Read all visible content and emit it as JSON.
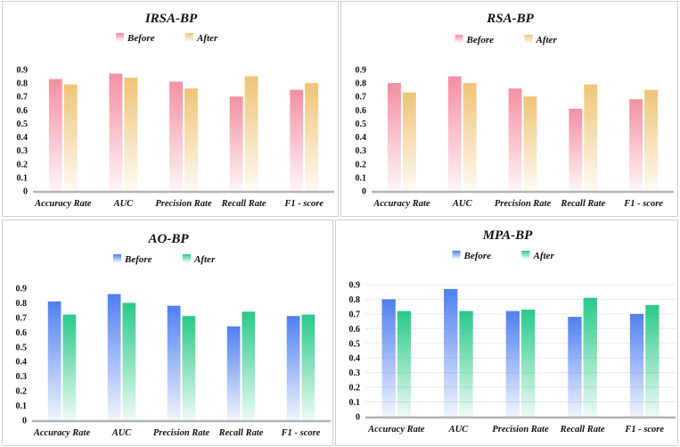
{
  "chart_data": [
    {
      "type": "bar",
      "title": "IRSA-BP",
      "categories": [
        "Accuracy Rate",
        "AUC",
        "Precision Rate",
        "Recall Rate",
        "F1 - score"
      ],
      "series": [
        {
          "name": "Before",
          "values": [
            0.83,
            0.87,
            0.81,
            0.7,
            0.75
          ]
        },
        {
          "name": "After",
          "values": [
            0.79,
            0.84,
            0.76,
            0.85,
            0.8
          ]
        }
      ],
      "y_ticks": [
        "0",
        "0.1",
        "0.2",
        "0.3",
        "0.4",
        "0.5",
        "0.6",
        "0.7",
        "0.8",
        "0.9"
      ],
      "ylim": [
        0,
        0.9
      ],
      "legend": "top-center",
      "grid": false,
      "colors": {
        "before": "#f48fa3",
        "after": "#efc477"
      }
    },
    {
      "type": "bar",
      "title": "RSA-BP",
      "categories": [
        "Accuracy Rate",
        "AUC",
        "Precision Rate",
        "Recall Rate",
        "F1 - score"
      ],
      "series": [
        {
          "name": "Before",
          "values": [
            0.8,
            0.85,
            0.76,
            0.61,
            0.68
          ]
        },
        {
          "name": "After",
          "values": [
            0.73,
            0.8,
            0.7,
            0.79,
            0.75
          ]
        }
      ],
      "y_ticks": [
        "0",
        "0.1",
        "0.2",
        "0.3",
        "0.4",
        "0.5",
        "0.6",
        "0.7",
        "0.8",
        "0.9"
      ],
      "ylim": [
        0,
        0.9
      ],
      "legend": "top-center",
      "grid": false,
      "colors": {
        "before": "#f48fa3",
        "after": "#efc477"
      }
    },
    {
      "type": "bar",
      "title": "AO-BP",
      "categories": [
        "Accuracy Rate",
        "AUC",
        "Precision Rate",
        "Recall Rate",
        "F1 - score"
      ],
      "series": [
        {
          "name": "Before",
          "values": [
            0.81,
            0.86,
            0.78,
            0.64,
            0.71
          ]
        },
        {
          "name": "After",
          "values": [
            0.72,
            0.8,
            0.71,
            0.74,
            0.72
          ]
        }
      ],
      "y_ticks": [
        "0",
        "0.1",
        "0.2",
        "0.3",
        "0.4",
        "0.5",
        "0.6",
        "0.7",
        "0.8",
        "0.9"
      ],
      "ylim": [
        0,
        0.9
      ],
      "legend": "top-center",
      "grid": false,
      "colors": {
        "before": "#4f7ff0",
        "after": "#29c98a"
      }
    },
    {
      "type": "bar",
      "title": "MPA-BP",
      "categories": [
        "Accuracy Rate",
        "AUC",
        "Precision Rate",
        "Recall Rate",
        "F1 - score"
      ],
      "series": [
        {
          "name": "Before",
          "values": [
            0.8,
            0.87,
            0.72,
            0.68,
            0.7
          ]
        },
        {
          "name": "After",
          "values": [
            0.72,
            0.72,
            0.73,
            0.81,
            0.76
          ]
        }
      ],
      "y_ticks": [
        "0",
        "0.1",
        "0.2",
        "0.3",
        "0.4",
        "0.5",
        "0.6",
        "0.7",
        "0.8",
        "0.9"
      ],
      "ylim": [
        0,
        0.9
      ],
      "legend": "top-center",
      "grid": true,
      "colors": {
        "before": "#4f7ff0",
        "after": "#29c98a"
      }
    }
  ]
}
